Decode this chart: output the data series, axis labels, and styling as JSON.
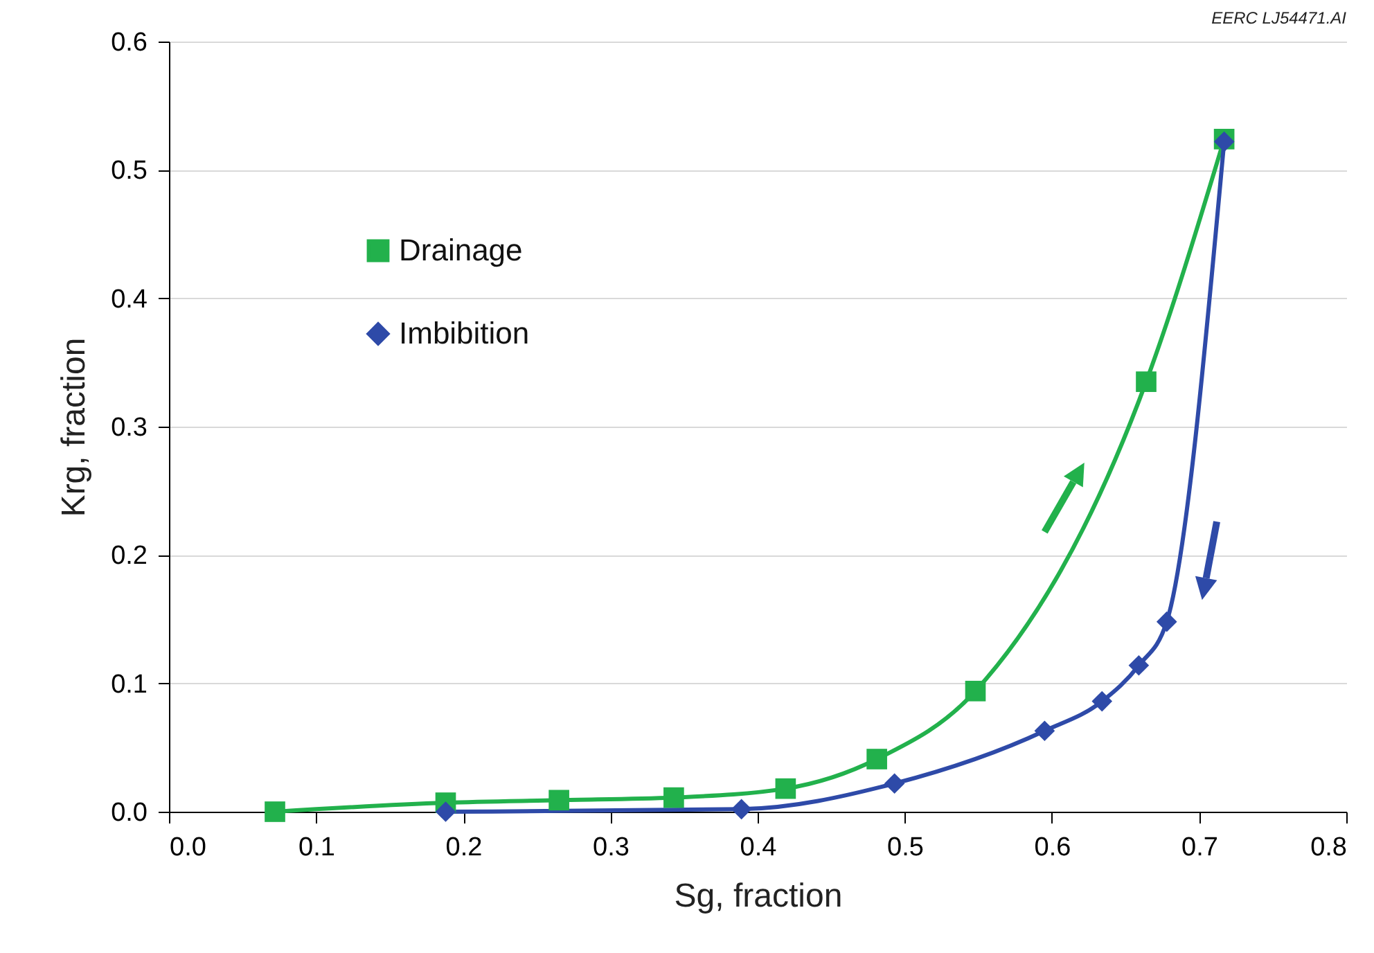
{
  "chart_data": {
    "type": "line",
    "xlabel": "Sg, fraction",
    "ylabel": "Krg, fraction",
    "annotations": [
      "EERC LJ54471.AI"
    ],
    "xlim": [
      0,
      0.8
    ],
    "xticks": [
      {
        "value": 0,
        "label": "0.0"
      },
      0.1,
      0.2,
      0.3,
      0.4,
      0.5,
      0.6,
      0.7,
      0.8
    ],
    "ylim": [
      0,
      0.6
    ],
    "yticks": [
      {
        "value": 0,
        "label": "0.0"
      },
      0.1,
      0.2,
      0.3,
      0.4,
      0.5,
      0.6
    ],
    "grid": "y",
    "legend": "top left",
    "series": [
      {
        "name": "Drainage",
        "color": "#22b14c",
        "marker": "square",
        "x": [
          0.072,
          0.188,
          0.265,
          0.343,
          0.419,
          0.481,
          0.548,
          0.664,
          0.717
        ],
        "values": [
          0,
          0.007,
          0.009,
          0.011,
          0.018,
          0.041,
          0.094,
          0.335,
          0.524
        ]
      },
      {
        "name": "Imbibition",
        "color": "#2e4aa8",
        "marker": "diamond",
        "x": [
          0.188,
          0.389,
          0.493,
          0.595,
          0.634,
          0.659,
          0.678,
          0.717
        ],
        "values": [
          0,
          0.002,
          0.022,
          0.063,
          0.086,
          0.114,
          0.148,
          0.522
        ]
      }
    ]
  }
}
